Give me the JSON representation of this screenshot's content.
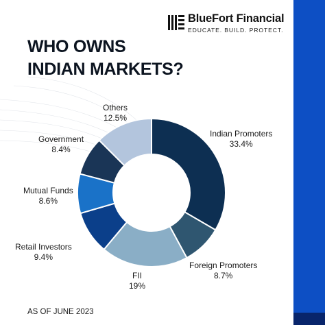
{
  "brand": {
    "name": "BlueFort Financial",
    "tagline": "EDUCATE. BUILD. PROTECT."
  },
  "title": {
    "line1": "WHO OWNS",
    "line2": "INDIAN MARKETS?"
  },
  "footer": "AS OF JUNE 2023",
  "colors": {
    "accent_bar": "#0d4fc4",
    "accent_dark": "#08256b"
  },
  "chart_data": {
    "type": "pie",
    "donut": true,
    "labels": [
      "Indian Promoters",
      "Foreign Promoters",
      "FII",
      "Retail Investors",
      "Mutual Funds",
      "Government",
      "Others"
    ],
    "values": [
      33.4,
      8.7,
      19,
      9.4,
      8.6,
      8.4,
      12.5
    ],
    "value_labels": [
      "33.4%",
      "8.7%",
      "19%",
      "9.4%",
      "8.6%",
      "8.4%",
      "12.5%"
    ],
    "colors": [
      "#0d2f52",
      "#2f5670",
      "#8aaec6",
      "#0b3f8a",
      "#1a72c8",
      "#1a3556",
      "#b3c5dd"
    ],
    "unit": "%"
  }
}
